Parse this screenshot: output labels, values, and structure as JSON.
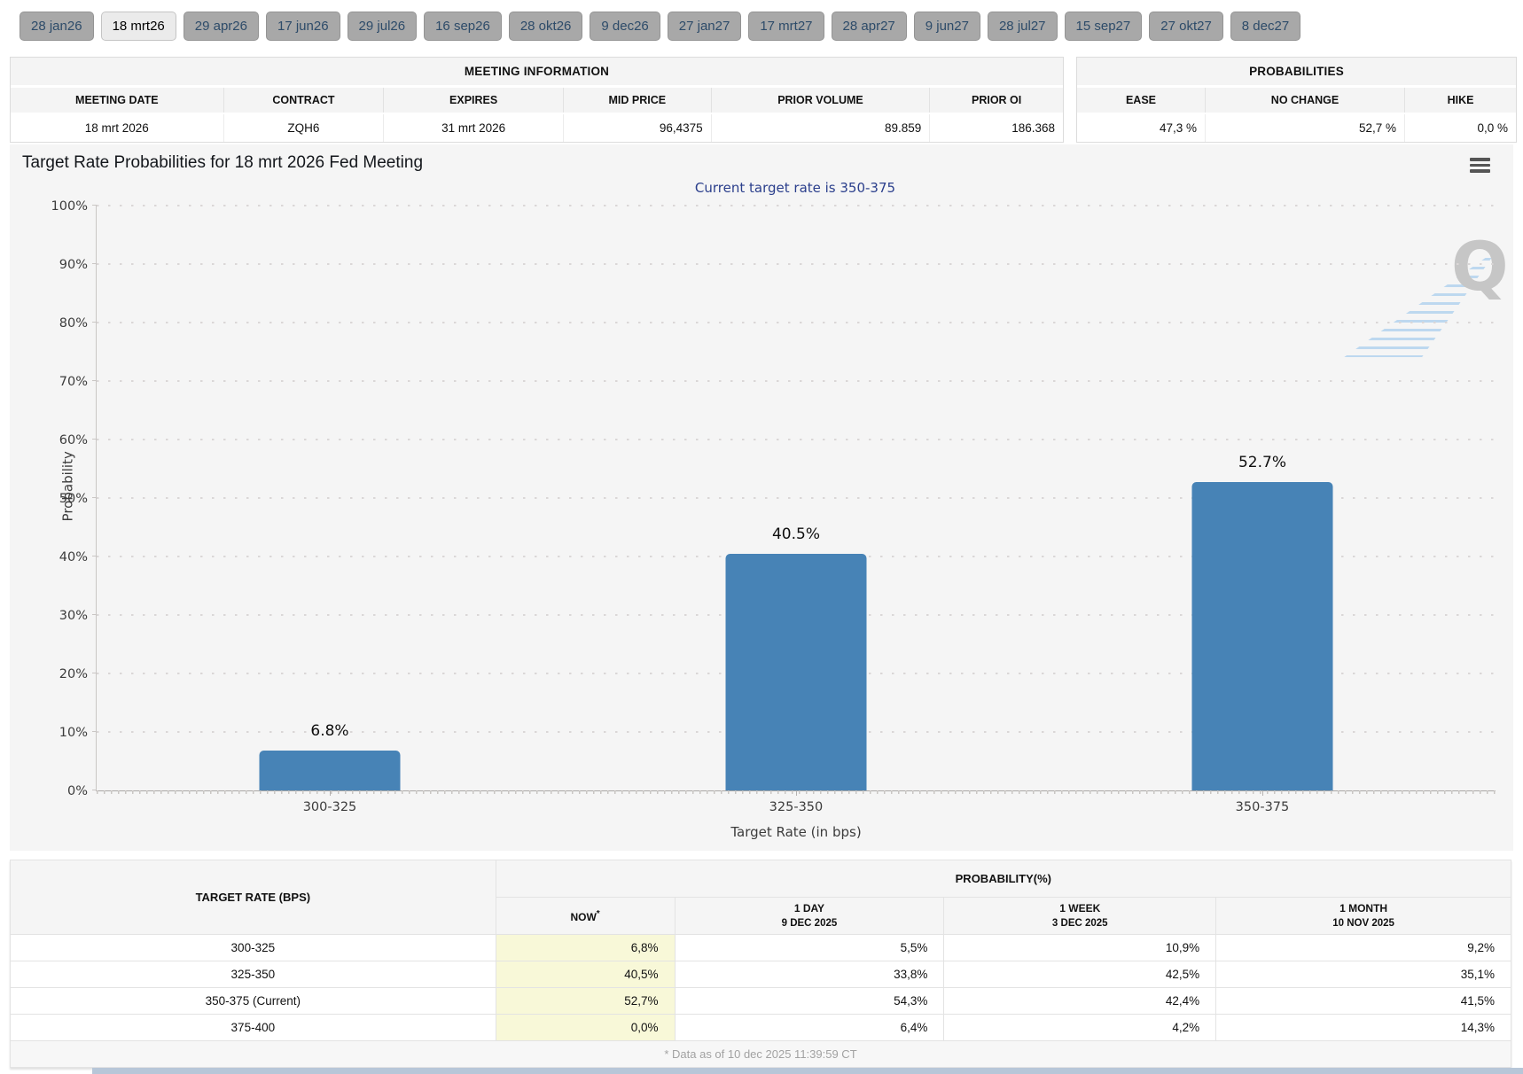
{
  "tabs": {
    "selected": "18 mrt26",
    "items": [
      "28 jan26",
      "18 mrt26",
      "29 apr26",
      "17 jun26",
      "29 jul26",
      "16 sep26",
      "28 okt26",
      "9 dec26",
      "27 jan27",
      "17 mrt27",
      "28 apr27",
      "9 jun27",
      "28 jul27",
      "15 sep27",
      "27 okt27",
      "8 dec27"
    ]
  },
  "meeting_information": {
    "title": "MEETING INFORMATION",
    "columns": [
      "MEETING DATE",
      "CONTRACT",
      "EXPIRES",
      "MID PRICE",
      "PRIOR VOLUME",
      "PRIOR OI"
    ],
    "row": {
      "meeting_date": "18 mrt 2026",
      "contract": "ZQH6",
      "expires": "31 mrt 2026",
      "mid_price": "96,4375",
      "prior_volume": "89.859",
      "prior_oi": "186.368"
    }
  },
  "probabilities_summary": {
    "title": "PROBABILITIES",
    "columns": [
      "EASE",
      "NO CHANGE",
      "HIKE"
    ],
    "row": {
      "ease": "47,3 %",
      "no_change": "52,7 %",
      "hike": "0,0 %"
    }
  },
  "chart_data": {
    "type": "bar",
    "title": "Target Rate Probabilities for 18 mrt 2026 Fed Meeting",
    "subtitle": "Current target rate is 350-375",
    "categories": [
      "300-325",
      "325-350",
      "350-375"
    ],
    "values": [
      6.8,
      40.5,
      52.7
    ],
    "bar_labels": [
      "6.8%",
      "40.5%",
      "52.7%"
    ],
    "xlabel": "Target Rate (in bps)",
    "ylabel": "Probability",
    "ylim": [
      0,
      100
    ],
    "ytick_step": 10,
    "ytick_suffix": "%",
    "grid": "dotted-horizontal",
    "legend": "none",
    "bar_color": "#4783b6",
    "watermark_letter": "Q"
  },
  "icons": {
    "chart_menu": "hamburger-lines",
    "watermark": "Q-logo"
  },
  "probability_table": {
    "corner_header": "TARGET RATE (BPS)",
    "group_header": "PROBABILITY(%)",
    "now_column": {
      "label": "NOW",
      "note_mark": "*"
    },
    "history_columns": [
      {
        "label": "1 DAY",
        "date": "9 DEC 2025"
      },
      {
        "label": "1 WEEK",
        "date": "3 DEC 2025"
      },
      {
        "label": "1 MONTH",
        "date": "10 NOV 2025"
      }
    ],
    "rows": [
      {
        "rate": "300-325",
        "now": "6,8%",
        "one_day": "5,5%",
        "one_week": "10,9%",
        "one_month": "9,2%"
      },
      {
        "rate": "325-350",
        "now": "40,5%",
        "one_day": "33,8%",
        "one_week": "42,5%",
        "one_month": "35,1%"
      },
      {
        "rate": "350-375 (Current)",
        "now": "52,7%",
        "one_day": "54,3%",
        "one_week": "42,4%",
        "one_month": "41,5%"
      },
      {
        "rate": "375-400",
        "now": "0,0%",
        "one_day": "6,4%",
        "one_week": "4,2%",
        "one_month": "14,3%"
      }
    ],
    "footnote": "* Data as of 10 dec 2025 11:39:59 CT"
  },
  "colors": {
    "bar": "#4783b6",
    "subtitle": "#2b3f8c",
    "now_highlight": "#f8f8d8",
    "tab_bg": "#a8a8a8",
    "tab_selected_bg": "#ebebeb",
    "panel_bg": "#f5f5f5",
    "bottom_strip": "#b7c6d8"
  }
}
